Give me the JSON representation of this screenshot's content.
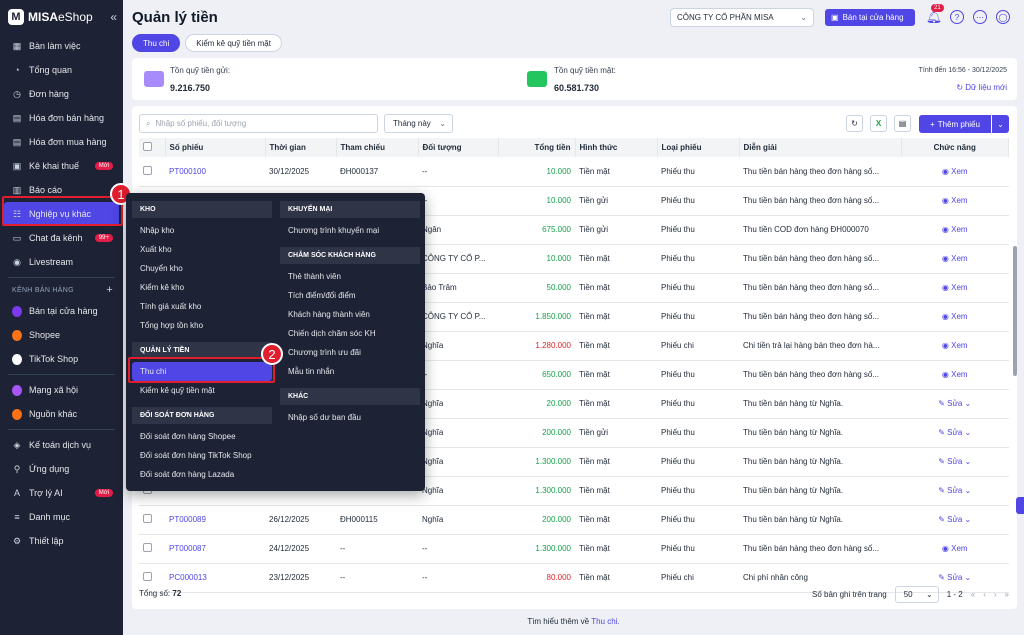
{
  "brand": {
    "logo_letter": "M",
    "name_bold": "MISA",
    "name_rest": "eShop",
    "collapse_icon": "«"
  },
  "sidebar": {
    "items": [
      {
        "label": "Bàn làm việc",
        "icon": "desk-icon"
      },
      {
        "label": "Tổng quan",
        "icon": "overview-icon"
      },
      {
        "label": "Đơn hàng",
        "icon": "order-icon"
      },
      {
        "label": "Hóa đơn bán hàng",
        "icon": "sales-invoice-icon"
      },
      {
        "label": "Hóa đơn mua hàng",
        "icon": "purchase-invoice-icon"
      },
      {
        "label": "Kê khai thuế",
        "icon": "tax-icon",
        "badge": "Mới"
      },
      {
        "label": "Báo cáo",
        "icon": "report-icon"
      },
      {
        "label": "Nghiệp vụ khác",
        "icon": "operations-icon",
        "active": true
      },
      {
        "label": "Chat đa kênh",
        "icon": "chat-icon",
        "badge": "99+"
      },
      {
        "label": "Livestream",
        "icon": "livestream-icon"
      }
    ],
    "channels_title": "KÊNH BÁN HÀNG",
    "channels_plus": "+",
    "channels": [
      {
        "label": "Bán tại cửa hàng",
        "color": "#7c3aed"
      },
      {
        "label": "Shopee",
        "color": "#f97316"
      },
      {
        "label": "TikTok Shop",
        "color": "#ffffff"
      }
    ],
    "social": [
      {
        "label": "Mạng xã hội",
        "color": "#a855f7"
      },
      {
        "label": "Nguồn khác",
        "color": "#f97316"
      }
    ],
    "bottom": [
      {
        "label": "Kế toán dịch vụ",
        "icon": "accounting-icon"
      },
      {
        "label": "Ứng dụng",
        "icon": "apps-icon"
      },
      {
        "label": "Trợ lý AI",
        "icon": "ai-icon",
        "badge": "Mới"
      },
      {
        "label": "Danh mục",
        "icon": "list-icon"
      },
      {
        "label": "Thiết lập",
        "icon": "settings-icon"
      }
    ]
  },
  "header": {
    "title": "Quản lý tiền",
    "company": "CÔNG TY CỔ PHẦN MISA",
    "store_button": "Bán tại cửa hàng",
    "notification_count": "21"
  },
  "tabs": [
    {
      "label": "Thu chi",
      "active": true
    },
    {
      "label": "Kiểm kê quỹ tiền mặt",
      "active": false
    }
  ],
  "summary": {
    "bank_label": "Tồn quỹ tiền gửi:",
    "bank_value": "9.216.750",
    "cash_label": "Tồn quỹ tiền mặt:",
    "cash_value": "60.581.730",
    "period": "Tính đến 16:56 - 30/12/2025",
    "refresh": "Dữ liệu mới"
  },
  "toolbar": {
    "search_placeholder": "Nhập số phiếu, đối tượng",
    "period_select": "Tháng này",
    "add_button": "Thêm phiếu"
  },
  "table": {
    "columns": [
      "Số phiếu",
      "Thời gian",
      "Tham chiếu",
      "Đối tượng",
      "Tổng tiền",
      "Hình thức",
      "Loại phiếu",
      "Diễn giải",
      "Chức năng"
    ],
    "rows": [
      {
        "code": "PT000100",
        "time": "30/12/2025",
        "ref": "ĐH000137",
        "obj": "--",
        "amount": "10.000",
        "method": "Tiền mặt",
        "type": "Phiếu thu",
        "desc": "Thu tiền bán hàng theo đơn hàng số...",
        "action": "Xem"
      },
      {
        "code": "",
        "time": "",
        "ref": "",
        "obj": "--",
        "amount": "10.000",
        "method": "Tiền gửi",
        "type": "Phiếu thu",
        "desc": "Thu tiền bán hàng theo đơn hàng số...",
        "action": "Xem"
      },
      {
        "code": "",
        "time": "",
        "ref": "",
        "obj": "Ngân",
        "amount": "675.000",
        "method": "Tiền gửi",
        "type": "Phiếu thu",
        "desc": "Thu tiền COD đơn hàng ĐH000070",
        "action": "Xem"
      },
      {
        "code": "",
        "time": "",
        "ref": "",
        "obj": "CÔNG TY CỔ P...",
        "amount": "10.000",
        "method": "Tiền mặt",
        "type": "Phiếu thu",
        "desc": "Thu tiền bán hàng theo đơn hàng số...",
        "action": "Xem"
      },
      {
        "code": "",
        "time": "",
        "ref": "",
        "obj": "Bảo Trâm",
        "amount": "50.000",
        "method": "Tiền mặt",
        "type": "Phiếu thu",
        "desc": "Thu tiền bán hàng theo đơn hàng số...",
        "action": "Xem"
      },
      {
        "code": "",
        "time": "",
        "ref": "",
        "obj": "CÔNG TY CỔ P...",
        "amount": "1.850.000",
        "method": "Tiền mặt",
        "type": "Phiếu thu",
        "desc": "Thu tiền bán hàng theo đơn hàng số...",
        "action": "Xem"
      },
      {
        "code": "",
        "time": "",
        "ref": "",
        "obj": "Nghĩa",
        "amount": "1.280.000",
        "method": "Tiền mặt",
        "type": "Phiếu chi",
        "desc": "Chi tiền trả lại hàng bán theo đơn hà...",
        "action": "Xem"
      },
      {
        "code": "",
        "time": "",
        "ref": "",
        "obj": "--",
        "amount": "650.000",
        "method": "Tiền mặt",
        "type": "Phiếu thu",
        "desc": "Thu tiền bán hàng theo đơn hàng số...",
        "action": "Xem"
      },
      {
        "code": "",
        "time": "",
        "ref": "",
        "obj": "Nghĩa",
        "amount": "20.000",
        "method": "Tiền mặt",
        "type": "Phiếu thu",
        "desc": "Thu tiền bán hàng từ Nghĩa.",
        "action": "Sửa"
      },
      {
        "code": "",
        "time": "",
        "ref": "",
        "obj": "Nghĩa",
        "amount": "200.000",
        "method": "Tiền gửi",
        "type": "Phiếu thu",
        "desc": "Thu tiền bán hàng từ Nghĩa.",
        "action": "Sửa"
      },
      {
        "code": "",
        "time": "",
        "ref": "",
        "obj": "Nghĩa",
        "amount": "1.300.000",
        "method": "Tiền mặt",
        "type": "Phiếu thu",
        "desc": "Thu tiền bán hàng từ Nghĩa.",
        "action": "Sửa"
      },
      {
        "code": "",
        "time": "",
        "ref": "",
        "obj": "Nghĩa",
        "amount": "1.300.000",
        "method": "Tiền mặt",
        "type": "Phiếu thu",
        "desc": "Thu tiền bán hàng từ Nghĩa.",
        "action": "Sửa"
      },
      {
        "code": "PT000089",
        "time": "26/12/2025",
        "ref": "ĐH000115",
        "obj": "Nghĩa",
        "amount": "200.000",
        "method": "Tiền mặt",
        "type": "Phiếu thu",
        "desc": "Thu tiền bán hàng từ Nghĩa.",
        "action": "Sửa"
      },
      {
        "code": "PT000087",
        "time": "24/12/2025",
        "ref": "--",
        "obj": "--",
        "amount": "1.300.000",
        "method": "Tiền mặt",
        "type": "Phiếu thu",
        "desc": "Thu tiền bán hàng theo đơn hàng số...",
        "action": "Xem"
      },
      {
        "code": "PC000013",
        "time": "23/12/2025",
        "ref": "--",
        "obj": "--",
        "amount": "80.000",
        "method": "Tiền mặt",
        "type": "Phiếu chi",
        "desc": "Chi phí nhân công",
        "action": "Sửa"
      }
    ]
  },
  "footer": {
    "total_label": "Tổng số:",
    "total_value": "72",
    "page_size_label": "Số bản ghi trên trang",
    "page_size": "50",
    "range": "1 - 2"
  },
  "learn_more": {
    "text": "Tìm hiểu thêm về",
    "link": "Thu chi."
  },
  "menu": {
    "left": [
      {
        "title": "KHO",
        "items": [
          "Nhập kho",
          "Xuất kho",
          "Chuyển kho",
          "Kiểm kê kho",
          "Tính giá xuất kho",
          "Tổng hợp tồn kho"
        ]
      },
      {
        "title": "QUẢN LÝ TIỀN",
        "items": [
          "Thu chi",
          "Kiểm kê quỹ tiền mặt"
        ],
        "active_item": "Thu chi"
      },
      {
        "title": "ĐỐI SOÁT ĐƠN HÀNG",
        "items": [
          "Đối soát đơn hàng Shopee",
          "Đối soát đơn hàng TikTok Shop",
          "Đối soát đơn hàng Lazada"
        ]
      }
    ],
    "right": [
      {
        "title": "KHUYẾN MẠI",
        "items": [
          "Chương trình khuyến mại"
        ]
      },
      {
        "title": "CHĂM SÓC KHÁCH HÀNG",
        "items": [
          "Thẻ thành viên",
          "Tích điểm/đổi điểm",
          "Khách hàng thành viên",
          "Chiến dịch chăm sóc KH",
          "Chương trình ưu đãi",
          "Mẫu tin nhắn"
        ]
      },
      {
        "title": "KHÁC",
        "items": [
          "Nhập số dư ban đầu"
        ]
      }
    ]
  },
  "markers": {
    "step1": "1",
    "step2": "2"
  },
  "colors": {
    "accent": "#4f46e5",
    "sidebar": "#1e2235",
    "highlight": "#e11d2e",
    "income": "#16a34a",
    "expense": "#dc2626"
  }
}
